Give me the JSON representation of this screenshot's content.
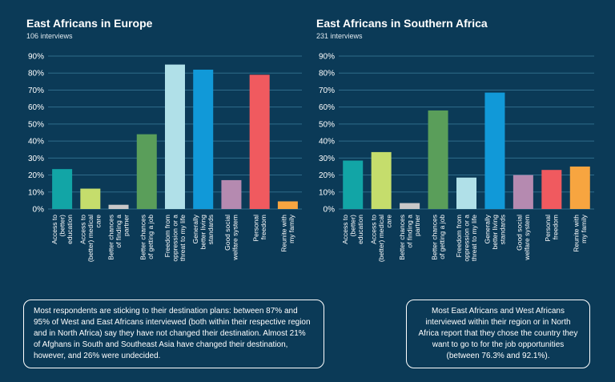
{
  "chart_data": [
    {
      "type": "bar",
      "title": "East Africans in Europe",
      "subtitle": "106 interviews",
      "categories": [
        "Access to (better) education",
        "Access to (better) medical care",
        "Better chances of finding a partner",
        "Better chances of getting a job",
        "Freedom from oppression or a threat to my life",
        "Generally better living standards",
        "Good social welfare system",
        "Personal freedom",
        "Reunite with my family"
      ],
      "category_lines": [
        [
          "Access to",
          "(better)",
          "education"
        ],
        [
          "Access to",
          "(better) medical",
          "care"
        ],
        [
          "Better chances",
          "of finding a",
          "partner"
        ],
        [
          "Better chances",
          "of getting a job"
        ],
        [
          "Freedom from",
          "oppression or a",
          "threat to my life"
        ],
        [
          "Generally",
          "better living",
          "standards"
        ],
        [
          "Good social",
          "welfare system"
        ],
        [
          "Personal",
          "freedom"
        ],
        [
          "Reunite with",
          "my family"
        ]
      ],
      "values": [
        23.5,
        12,
        2.5,
        44,
        85,
        82,
        17,
        79,
        4.5
      ],
      "colors": [
        "#12a5a6",
        "#c5dd6c",
        "#c8c8c8",
        "#5a9e5a",
        "#b0e0e8",
        "#1199d8",
        "#b58ab0",
        "#f05a5f",
        "#f7a540"
      ],
      "ylim": [
        0,
        90
      ],
      "yticks": [
        "0%",
        "10%",
        "20%",
        "30%",
        "40%",
        "50%",
        "60%",
        "70%",
        "80%",
        "90%"
      ],
      "grid": true,
      "xlabel": "",
      "ylabel": ""
    },
    {
      "type": "bar",
      "title": "East Africans in Southern Africa",
      "subtitle": "231 interviews",
      "categories": [
        "Access to (better) education",
        "Access to (better) medical care",
        "Better chances of finding a partner",
        "Better chances of getting a job",
        "Freedom from oppression or a threat to my life",
        "Generally better living standards",
        "Good social welfare system",
        "Personal freedom",
        "Reunite with my family"
      ],
      "category_lines": [
        [
          "Access to",
          "(better)",
          "education"
        ],
        [
          "Access to",
          "(better) medical",
          "care"
        ],
        [
          "Better chances",
          "of finding a",
          "partner"
        ],
        [
          "Better chances",
          "of getting a job"
        ],
        [
          "Freedom from",
          "oppression or a",
          "threat to my life"
        ],
        [
          "Generally",
          "better living",
          "standards"
        ],
        [
          "Good social",
          "welfare system"
        ],
        [
          "Personal",
          "freedom"
        ],
        [
          "Reunite with",
          "my family"
        ]
      ],
      "values": [
        28.5,
        33.5,
        3.5,
        58,
        18.5,
        68.5,
        20,
        23,
        25
      ],
      "colors": [
        "#12a5a6",
        "#c5dd6c",
        "#c8c8c8",
        "#5a9e5a",
        "#b0e0e8",
        "#1199d8",
        "#b58ab0",
        "#f05a5f",
        "#f7a540"
      ],
      "ylim": [
        0,
        90
      ],
      "yticks": [
        "0%",
        "10%",
        "20%",
        "30%",
        "40%",
        "50%",
        "60%",
        "70%",
        "80%",
        "90%"
      ],
      "grid": true,
      "xlabel": "",
      "ylabel": ""
    }
  ],
  "notes": {
    "left": "Most respondents are sticking to their destination plans: between 87% and 95% of West and East Africans interviewed (both within their respective region and in North Africa) say they have not changed their destination. Almost 21% of Afghans in South and Southeast Asia have changed their destination, however, and 26% were undecided.",
    "right": "Most East Africans and West Africans interviewed within their region or in North Africa report that they chose the country they want to go to for the job opportunities (between 76.3% and 92.1%)."
  },
  "style": {
    "background": "#0b3a57",
    "gridline": "#2f6c8a",
    "axis_text": "#ffffff"
  }
}
